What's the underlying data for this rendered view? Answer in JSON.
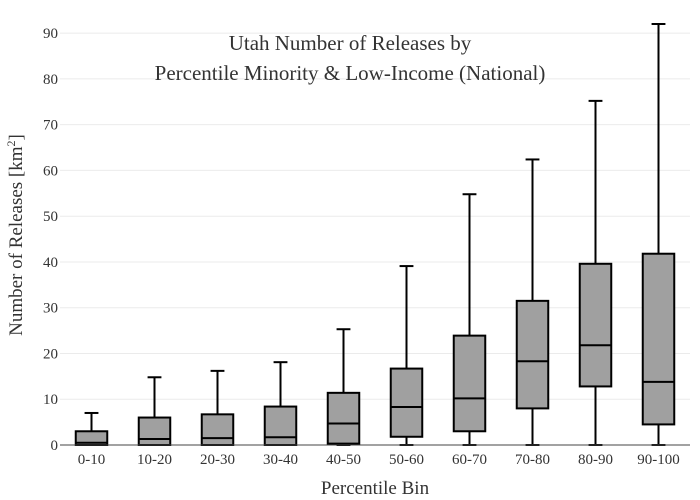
{
  "chart_data": {
    "type": "box",
    "title_line1": "Utah Number of Releases by",
    "title_line2": "Percentile Minority & Low-Income (National)",
    "xlabel": "Percentile Bin",
    "ylabel_main": "Number of Releases  [km",
    "ylabel_sup": "2",
    "ylabel_close": "]",
    "ylim": [
      0,
      92
    ],
    "y_ticks": [
      0,
      10,
      20,
      30,
      40,
      50,
      60,
      70,
      80,
      90
    ],
    "grid": true,
    "categories": [
      "0-10",
      "10-20",
      "20-30",
      "30-40",
      "40-50",
      "50-60",
      "60-70",
      "70-80",
      "80-90",
      "90-100"
    ],
    "boxes": [
      {
        "min": 0,
        "q1": 0,
        "median": 0.5,
        "q3": 3,
        "max": 7
      },
      {
        "min": 0,
        "q1": 0,
        "median": 1.3,
        "q3": 6,
        "max": 14.8
      },
      {
        "min": 0,
        "q1": 0,
        "median": 1.5,
        "q3": 6.7,
        "max": 16.2
      },
      {
        "min": 0,
        "q1": 0,
        "median": 1.7,
        "q3": 8.4,
        "max": 18.1
      },
      {
        "min": 0,
        "q1": 0.3,
        "median": 4.7,
        "q3": 11.4,
        "max": 25.3
      },
      {
        "min": 0,
        "q1": 1.8,
        "median": 8.3,
        "q3": 16.7,
        "max": 39.1
      },
      {
        "min": 0,
        "q1": 3,
        "median": 10.2,
        "q3": 23.9,
        "max": 54.8
      },
      {
        "min": 0,
        "q1": 8,
        "median": 18.3,
        "q3": 31.5,
        "max": 62.4
      },
      {
        "min": 0,
        "q1": 12.8,
        "median": 21.8,
        "q3": 39.6,
        "max": 75.2
      },
      {
        "min": 0,
        "q1": 4.5,
        "median": 13.8,
        "q3": 41.8,
        "max": 92
      }
    ],
    "colors": {
      "box_fill": "#a0a0a0",
      "line": "#000000",
      "grid": "#ebebeb",
      "text": "#333333"
    }
  }
}
